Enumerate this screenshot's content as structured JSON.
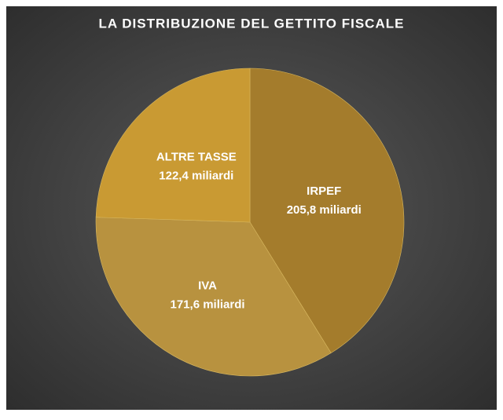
{
  "chart_data": {
    "type": "pie",
    "title": "LA DISTRIBUZIONE DEL GETTITO FISCALE",
    "categories": [
      "IRPEF",
      "IVA",
      "ALTRE TASSE"
    ],
    "values": [
      205.8,
      171.6,
      122.4
    ],
    "value_labels": [
      "205,8 miliardi",
      "171,6 miliardi",
      "122,4 miliardi"
    ],
    "colors": [
      "#a47c2c",
      "#b8923f",
      "#c99a33"
    ]
  }
}
